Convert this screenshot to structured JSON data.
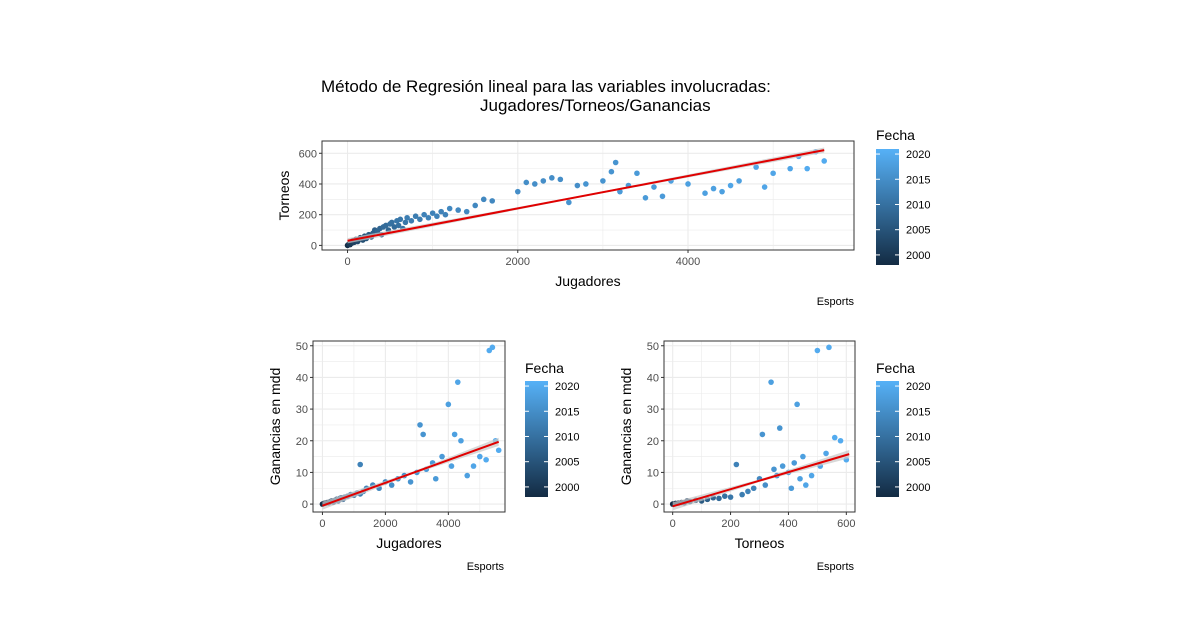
{
  "figure": {
    "title_line1": "Método de Regresión lineal para las variables involucradas:",
    "title_line2": "Jugadores/Torneos/Ganancias"
  },
  "colors": {
    "low": "#132B43",
    "high": "#56B1F7",
    "fit": "#e00000",
    "band": "#c8c8c8",
    "grid": "#ebebeb",
    "panel_border": "#333333",
    "axis_text": "#4d4d4d"
  },
  "chart_data": [
    {
      "type": "scatter",
      "id": "top",
      "xlabel": "Jugadores",
      "ylabel": "Torneos",
      "caption": "Esports",
      "xlim": [
        -300,
        5950
      ],
      "ylim": [
        -30,
        680
      ],
      "xticks": [
        0,
        2000,
        4000
      ],
      "xtick_labels": [
        "0",
        "2000",
        "4000"
      ],
      "yticks": [
        0,
        200,
        400,
        600
      ],
      "ytick_labels": [
        "0",
        "200",
        "400",
        "600"
      ],
      "grid": true,
      "legend": {
        "title": "Fecha",
        "placement": "right",
        "ticks": [
          2000,
          2005,
          2010,
          2015,
          2020
        ],
        "tick_labels": [
          "2000",
          "2005",
          "2010",
          "2015",
          "2020"
        ],
        "range": [
          1998,
          2021
        ]
      },
      "fit": {
        "intercept": 30,
        "slope": 0.1055,
        "x_range": [
          0,
          5600
        ]
      },
      "points": [
        {
          "x": 0,
          "y": 0,
          "year": 1998
        },
        {
          "x": 10,
          "y": 5,
          "year": 1999
        },
        {
          "x": 20,
          "y": 10,
          "year": 2000
        },
        {
          "x": 30,
          "y": 5,
          "year": 2000
        },
        {
          "x": 40,
          "y": 20,
          "year": 2001
        },
        {
          "x": 50,
          "y": 15,
          "year": 2001
        },
        {
          "x": 60,
          "y": 30,
          "year": 2002
        },
        {
          "x": 80,
          "y": 20,
          "year": 2002
        },
        {
          "x": 100,
          "y": 40,
          "year": 2003
        },
        {
          "x": 120,
          "y": 25,
          "year": 2003
        },
        {
          "x": 150,
          "y": 50,
          "year": 2004
        },
        {
          "x": 180,
          "y": 35,
          "year": 2004
        },
        {
          "x": 200,
          "y": 60,
          "year": 2005
        },
        {
          "x": 220,
          "y": 45,
          "year": 2005
        },
        {
          "x": 250,
          "y": 70,
          "year": 2006
        },
        {
          "x": 280,
          "y": 55,
          "year": 2006
        },
        {
          "x": 300,
          "y": 80,
          "year": 2007
        },
        {
          "x": 320,
          "y": 100,
          "year": 2007
        },
        {
          "x": 350,
          "y": 90,
          "year": 2008
        },
        {
          "x": 380,
          "y": 110,
          "year": 2008
        },
        {
          "x": 400,
          "y": 70,
          "year": 2007
        },
        {
          "x": 420,
          "y": 120,
          "year": 2009
        },
        {
          "x": 450,
          "y": 130,
          "year": 2009
        },
        {
          "x": 480,
          "y": 100,
          "year": 2008
        },
        {
          "x": 500,
          "y": 140,
          "year": 2010
        },
        {
          "x": 520,
          "y": 150,
          "year": 2010
        },
        {
          "x": 550,
          "y": 120,
          "year": 2009
        },
        {
          "x": 580,
          "y": 160,
          "year": 2011
        },
        {
          "x": 600,
          "y": 130,
          "year": 2010
        },
        {
          "x": 620,
          "y": 170,
          "year": 2011
        },
        {
          "x": 650,
          "y": 110,
          "year": 2010
        },
        {
          "x": 680,
          "y": 150,
          "year": 2011
        },
        {
          "x": 700,
          "y": 180,
          "year": 2012
        },
        {
          "x": 750,
          "y": 160,
          "year": 2012
        },
        {
          "x": 800,
          "y": 190,
          "year": 2012
        },
        {
          "x": 850,
          "y": 170,
          "year": 2012
        },
        {
          "x": 900,
          "y": 200,
          "year": 2013
        },
        {
          "x": 950,
          "y": 180,
          "year": 2013
        },
        {
          "x": 1000,
          "y": 210,
          "year": 2013
        },
        {
          "x": 1050,
          "y": 190,
          "year": 2013
        },
        {
          "x": 1100,
          "y": 220,
          "year": 2013
        },
        {
          "x": 1150,
          "y": 200,
          "year": 2013
        },
        {
          "x": 1200,
          "y": 240,
          "year": 2014
        },
        {
          "x": 1300,
          "y": 230,
          "year": 2014
        },
        {
          "x": 1400,
          "y": 220,
          "year": 2014
        },
        {
          "x": 1500,
          "y": 260,
          "year": 2014
        },
        {
          "x": 1600,
          "y": 300,
          "year": 2014
        },
        {
          "x": 1700,
          "y": 290,
          "year": 2014
        },
        {
          "x": 2000,
          "y": 350,
          "year": 2015
        },
        {
          "x": 2100,
          "y": 410,
          "year": 2015
        },
        {
          "x": 2200,
          "y": 400,
          "year": 2015
        },
        {
          "x": 2300,
          "y": 420,
          "year": 2015
        },
        {
          "x": 2400,
          "y": 440,
          "year": 2015
        },
        {
          "x": 2500,
          "y": 430,
          "year": 2015
        },
        {
          "x": 2600,
          "y": 280,
          "year": 2016
        },
        {
          "x": 2700,
          "y": 390,
          "year": 2015
        },
        {
          "x": 2800,
          "y": 400,
          "year": 2016
        },
        {
          "x": 3000,
          "y": 420,
          "year": 2016
        },
        {
          "x": 3100,
          "y": 480,
          "year": 2016
        },
        {
          "x": 3150,
          "y": 540,
          "year": 2016
        },
        {
          "x": 3200,
          "y": 350,
          "year": 2017
        },
        {
          "x": 3300,
          "y": 390,
          "year": 2017
        },
        {
          "x": 3400,
          "y": 470,
          "year": 2017
        },
        {
          "x": 3500,
          "y": 310,
          "year": 2017
        },
        {
          "x": 3600,
          "y": 380,
          "year": 2017
        },
        {
          "x": 3700,
          "y": 320,
          "year": 2017
        },
        {
          "x": 3800,
          "y": 420,
          "year": 2018
        },
        {
          "x": 4000,
          "y": 400,
          "year": 2018
        },
        {
          "x": 4200,
          "y": 340,
          "year": 2018
        },
        {
          "x": 4300,
          "y": 370,
          "year": 2018
        },
        {
          "x": 4400,
          "y": 350,
          "year": 2018
        },
        {
          "x": 4500,
          "y": 390,
          "year": 2019
        },
        {
          "x": 4600,
          "y": 420,
          "year": 2018
        },
        {
          "x": 4800,
          "y": 510,
          "year": 2019
        },
        {
          "x": 4900,
          "y": 380,
          "year": 2019
        },
        {
          "x": 5000,
          "y": 470,
          "year": 2019
        },
        {
          "x": 5200,
          "y": 500,
          "year": 2019
        },
        {
          "x": 5300,
          "y": 580,
          "year": 2020
        },
        {
          "x": 5400,
          "y": 500,
          "year": 2020
        },
        {
          "x": 5500,
          "y": 610,
          "year": 2020
        },
        {
          "x": 5600,
          "y": 550,
          "year": 2020
        }
      ]
    },
    {
      "type": "scatter",
      "id": "bottom-left",
      "xlabel": "Jugadores",
      "ylabel": "Ganancias en mdd",
      "caption": "Esports",
      "xlim": [
        -300,
        5800
      ],
      "ylim": [
        -2.5,
        51.5
      ],
      "xticks": [
        0,
        2000,
        4000
      ],
      "xtick_labels": [
        "0",
        "2000",
        "4000"
      ],
      "yticks": [
        0,
        10,
        20,
        30,
        40,
        50
      ],
      "ytick_labels": [
        "0",
        "10",
        "20",
        "30",
        "40",
        "50"
      ],
      "grid": true,
      "legend": {
        "title": "Fecha",
        "placement": "right",
        "ticks": [
          2000,
          2005,
          2010,
          2015,
          2020
        ],
        "tick_labels": [
          "2000",
          "2005",
          "2010",
          "2015",
          "2020"
        ],
        "range": [
          1998,
          2021
        ]
      },
      "fit": {
        "intercept": -0.5,
        "slope": 0.0036,
        "x_range": [
          0,
          5600
        ]
      },
      "points": [
        {
          "x": 0,
          "y": 0,
          "year": 1998
        },
        {
          "x": 50,
          "y": 0.2,
          "year": 1999
        },
        {
          "x": 100,
          "y": 0.3,
          "year": 2000
        },
        {
          "x": 150,
          "y": 0.5,
          "year": 2001
        },
        {
          "x": 200,
          "y": 0.4,
          "year": 2002
        },
        {
          "x": 250,
          "y": 0.8,
          "year": 2003
        },
        {
          "x": 300,
          "y": 1,
          "year": 2004
        },
        {
          "x": 350,
          "y": 0.6,
          "year": 2005
        },
        {
          "x": 400,
          "y": 1.2,
          "year": 2006
        },
        {
          "x": 450,
          "y": 1.5,
          "year": 2007
        },
        {
          "x": 500,
          "y": 1,
          "year": 2008
        },
        {
          "x": 550,
          "y": 1.8,
          "year": 2008
        },
        {
          "x": 600,
          "y": 2,
          "year": 2009
        },
        {
          "x": 650,
          "y": 1.5,
          "year": 2009
        },
        {
          "x": 700,
          "y": 2.2,
          "year": 2010
        },
        {
          "x": 800,
          "y": 2.5,
          "year": 2010
        },
        {
          "x": 900,
          "y": 3,
          "year": 2011
        },
        {
          "x": 1000,
          "y": 2.8,
          "year": 2011
        },
        {
          "x": 1100,
          "y": 3.5,
          "year": 2012
        },
        {
          "x": 1200,
          "y": 3.2,
          "year": 2012
        },
        {
          "x": 1300,
          "y": 4,
          "year": 2013
        },
        {
          "x": 1400,
          "y": 5,
          "year": 2013
        },
        {
          "x": 1200,
          "y": 12.5,
          "year": 2013
        },
        {
          "x": 1600,
          "y": 6,
          "year": 2014
        },
        {
          "x": 1800,
          "y": 5,
          "year": 2014
        },
        {
          "x": 2000,
          "y": 7,
          "year": 2014
        },
        {
          "x": 2200,
          "y": 6,
          "year": 2015
        },
        {
          "x": 2400,
          "y": 8,
          "year": 2015
        },
        {
          "x": 2600,
          "y": 9,
          "year": 2015
        },
        {
          "x": 2800,
          "y": 7,
          "year": 2016
        },
        {
          "x": 3000,
          "y": 10,
          "year": 2016
        },
        {
          "x": 3100,
          "y": 25,
          "year": 2016
        },
        {
          "x": 3200,
          "y": 22,
          "year": 2016
        },
        {
          "x": 3300,
          "y": 11,
          "year": 2017
        },
        {
          "x": 3500,
          "y": 13,
          "year": 2017
        },
        {
          "x": 3600,
          "y": 8,
          "year": 2017
        },
        {
          "x": 3800,
          "y": 15,
          "year": 2017
        },
        {
          "x": 4000,
          "y": 31.5,
          "year": 2018
        },
        {
          "x": 4100,
          "y": 12,
          "year": 2018
        },
        {
          "x": 4200,
          "y": 22,
          "year": 2018
        },
        {
          "x": 4300,
          "y": 38.5,
          "year": 2019
        },
        {
          "x": 4400,
          "y": 20,
          "year": 2018
        },
        {
          "x": 4600,
          "y": 9,
          "year": 2018
        },
        {
          "x": 4800,
          "y": 12,
          "year": 2019
        },
        {
          "x": 5000,
          "y": 15,
          "year": 2019
        },
        {
          "x": 5200,
          "y": 14,
          "year": 2020
        },
        {
          "x": 5300,
          "y": 48.5,
          "year": 2020
        },
        {
          "x": 5400,
          "y": 49.5,
          "year": 2020
        },
        {
          "x": 5500,
          "y": 20,
          "year": 2020
        },
        {
          "x": 5600,
          "y": 17,
          "year": 2020
        }
      ]
    },
    {
      "type": "scatter",
      "id": "bottom-right",
      "xlabel": "Torneos",
      "ylabel": "Ganancias en mdd",
      "caption": "Esports",
      "xlim": [
        -30,
        630
      ],
      "ylim": [
        -2.5,
        51.5
      ],
      "xticks": [
        0,
        200,
        400,
        600
      ],
      "xtick_labels": [
        "0",
        "200",
        "400",
        "600"
      ],
      "yticks": [
        0,
        10,
        20,
        30,
        40,
        50
      ],
      "ytick_labels": [
        "0",
        "10",
        "20",
        "30",
        "40",
        "50"
      ],
      "grid": true,
      "legend": {
        "title": "Fecha",
        "placement": "right",
        "ticks": [
          2000,
          2005,
          2010,
          2015,
          2020
        ],
        "tick_labels": [
          "2000",
          "2005",
          "2010",
          "2015",
          "2020"
        ],
        "range": [
          1998,
          2021
        ]
      },
      "fit": {
        "intercept": -0.7,
        "slope": 0.027,
        "x_range": [
          0,
          610
        ]
      },
      "points": [
        {
          "x": 0,
          "y": 0,
          "year": 1998
        },
        {
          "x": 10,
          "y": 0.2,
          "year": 1999
        },
        {
          "x": 20,
          "y": 0.3,
          "year": 2000
        },
        {
          "x": 30,
          "y": 0.5,
          "year": 2001
        },
        {
          "x": 40,
          "y": 0.4,
          "year": 2002
        },
        {
          "x": 50,
          "y": 1,
          "year": 2003
        },
        {
          "x": 60,
          "y": 0.8,
          "year": 2004
        },
        {
          "x": 80,
          "y": 1.2,
          "year": 2005
        },
        {
          "x": 100,
          "y": 1,
          "year": 2006
        },
        {
          "x": 120,
          "y": 1.5,
          "year": 2007
        },
        {
          "x": 140,
          "y": 2,
          "year": 2008
        },
        {
          "x": 160,
          "y": 1.8,
          "year": 2009
        },
        {
          "x": 180,
          "y": 2.5,
          "year": 2010
        },
        {
          "x": 200,
          "y": 2.2,
          "year": 2011
        },
        {
          "x": 220,
          "y": 12.5,
          "year": 2013
        },
        {
          "x": 240,
          "y": 3,
          "year": 2012
        },
        {
          "x": 260,
          "y": 4,
          "year": 2013
        },
        {
          "x": 280,
          "y": 5,
          "year": 2013
        },
        {
          "x": 300,
          "y": 8,
          "year": 2014
        },
        {
          "x": 310,
          "y": 22,
          "year": 2016
        },
        {
          "x": 320,
          "y": 6,
          "year": 2015
        },
        {
          "x": 340,
          "y": 38.5,
          "year": 2018
        },
        {
          "x": 350,
          "y": 11,
          "year": 2016
        },
        {
          "x": 360,
          "y": 9,
          "year": 2016
        },
        {
          "x": 370,
          "y": 24,
          "year": 2016
        },
        {
          "x": 380,
          "y": 12,
          "year": 2017
        },
        {
          "x": 400,
          "y": 10,
          "year": 2017
        },
        {
          "x": 410,
          "y": 5,
          "year": 2017
        },
        {
          "x": 420,
          "y": 13,
          "year": 2017
        },
        {
          "x": 430,
          "y": 31.5,
          "year": 2018
        },
        {
          "x": 440,
          "y": 8,
          "year": 2018
        },
        {
          "x": 450,
          "y": 15,
          "year": 2018
        },
        {
          "x": 460,
          "y": 6,
          "year": 2019
        },
        {
          "x": 480,
          "y": 9,
          "year": 2019
        },
        {
          "x": 500,
          "y": 48.5,
          "year": 2020
        },
        {
          "x": 510,
          "y": 12,
          "year": 2019
        },
        {
          "x": 530,
          "y": 16,
          "year": 2019
        },
        {
          "x": 540,
          "y": 49.5,
          "year": 2020
        },
        {
          "x": 560,
          "y": 21,
          "year": 2020
        },
        {
          "x": 580,
          "y": 20,
          "year": 2020
        },
        {
          "x": 600,
          "y": 14,
          "year": 2020
        }
      ]
    }
  ]
}
